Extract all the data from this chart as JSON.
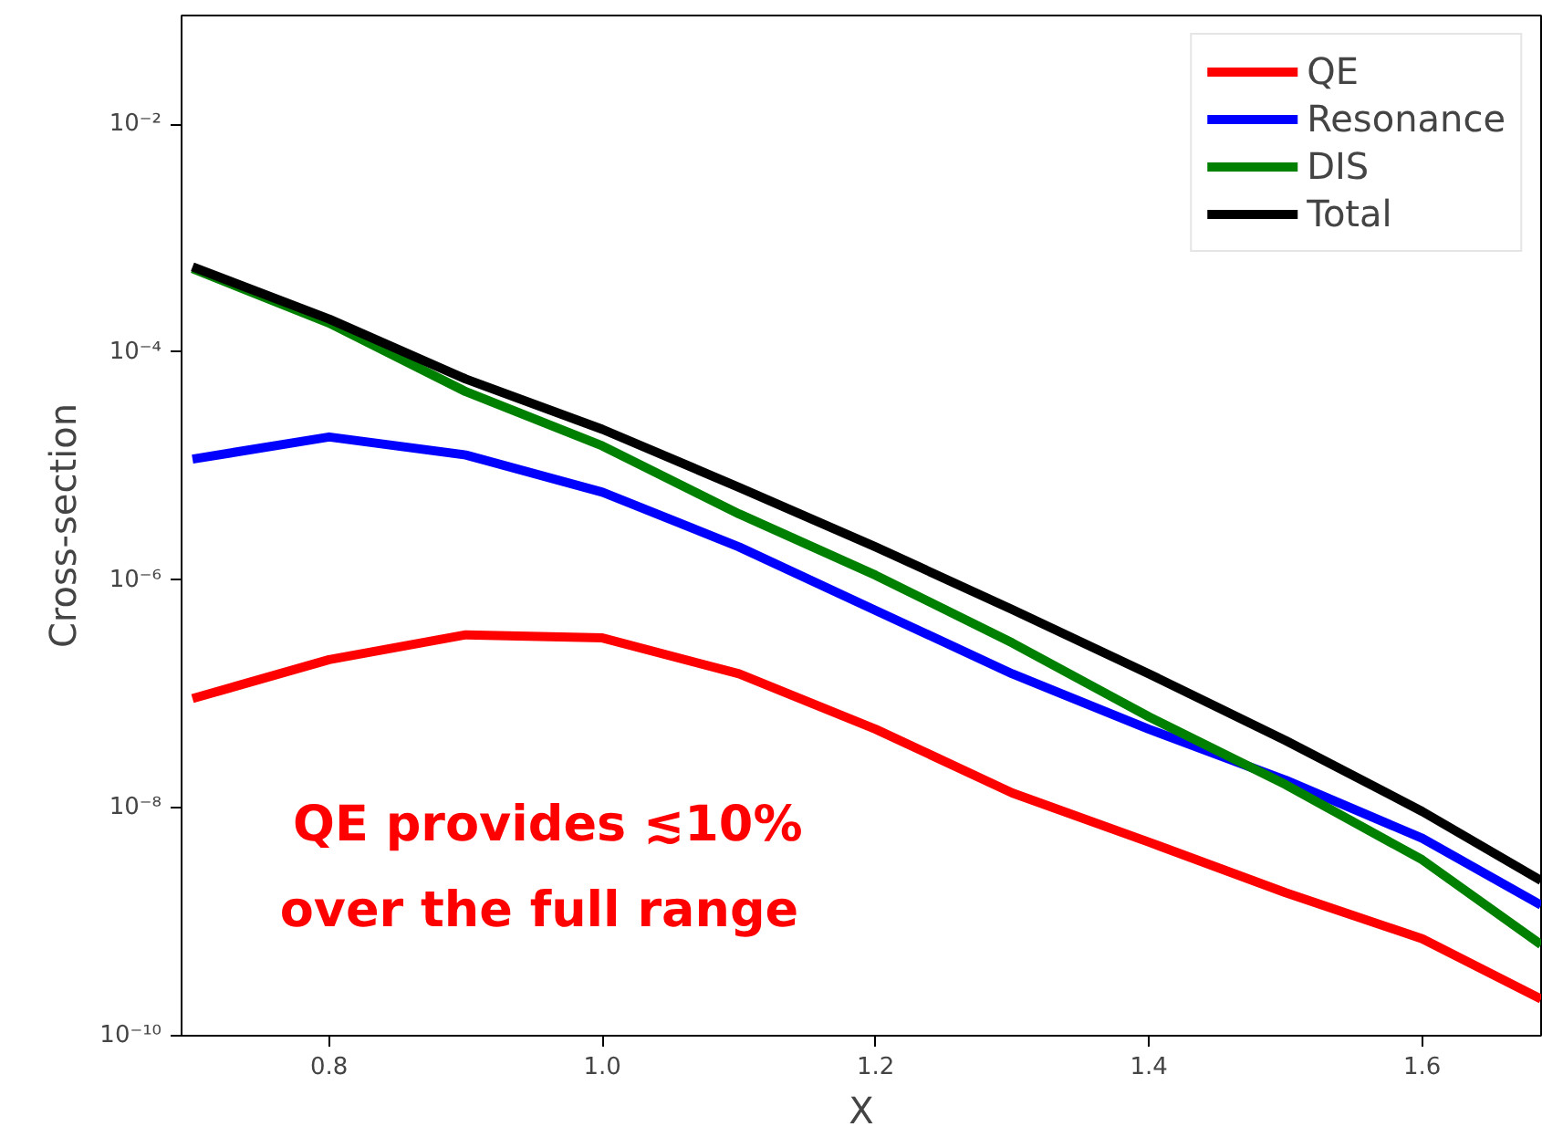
{
  "chart_data": {
    "type": "line",
    "xlabel": "X",
    "ylabel": "Cross-section",
    "log": "y",
    "xlim": [
      0.692,
      1.687
    ],
    "ylim": [
      1e-10,
      0.09
    ],
    "xticks": [
      {
        "value": 0.8,
        "label": "0.8"
      },
      {
        "value": 1.0,
        "label": "1.0"
      },
      {
        "value": 1.2,
        "label": "1.2"
      },
      {
        "value": 1.4,
        "label": "1.4"
      },
      {
        "value": 1.6,
        "label": "1.6"
      }
    ],
    "yticks": [
      {
        "value": 1e-10,
        "label": "10⁻¹⁰"
      },
      {
        "value": 1e-08,
        "label": "10⁻⁸"
      },
      {
        "value": 1e-06,
        "label": "10⁻⁶"
      },
      {
        "value": 0.0001,
        "label": "10⁻⁴"
      },
      {
        "value": 0.01,
        "label": "10⁻²"
      }
    ],
    "x": [
      0.7,
      0.8,
      0.9,
      1.0,
      1.1,
      1.2,
      1.3,
      1.4,
      1.5,
      1.6,
      1.687
    ],
    "series": [
      {
        "name": "QE",
        "color": "#ff0000",
        "values": [
          9.1e-08,
          2e-07,
          3.3e-07,
          3.1e-07,
          1.5e-07,
          4.9e-08,
          1.35e-08,
          5e-09,
          1.8e-09,
          7.1e-10,
          2.1e-10
        ]
      },
      {
        "name": "Resonance",
        "color": "#0000ff",
        "values": [
          1.15e-05,
          1.8e-05,
          1.25e-05,
          5.9e-06,
          1.95e-06,
          5.4e-07,
          1.5e-07,
          4.9e-08,
          1.75e-08,
          5.4e-09,
          1.4e-09
        ]
      },
      {
        "name": "DIS",
        "color": "#008000",
        "values": [
          0.00054,
          0.00018,
          4.5e-05,
          1.5e-05,
          3.8e-06,
          1.1e-06,
          2.8e-07,
          6.3e-08,
          1.6e-08,
          3.5e-09,
          6.3e-10
        ]
      },
      {
        "name": "Total",
        "color": "#000000",
        "values": [
          0.00056,
          0.000195,
          5.8e-05,
          2.1e-05,
          6.5e-06,
          1.95e-06,
          5.5e-07,
          1.5e-07,
          3.9e-08,
          9.3e-09,
          2.3e-09
        ]
      }
    ],
    "annotations": [
      "QE provides ≲10%",
      "over  the full range"
    ],
    "legend": "top right",
    "grid": false,
    "marker": "none",
    "line_style": "solid"
  }
}
